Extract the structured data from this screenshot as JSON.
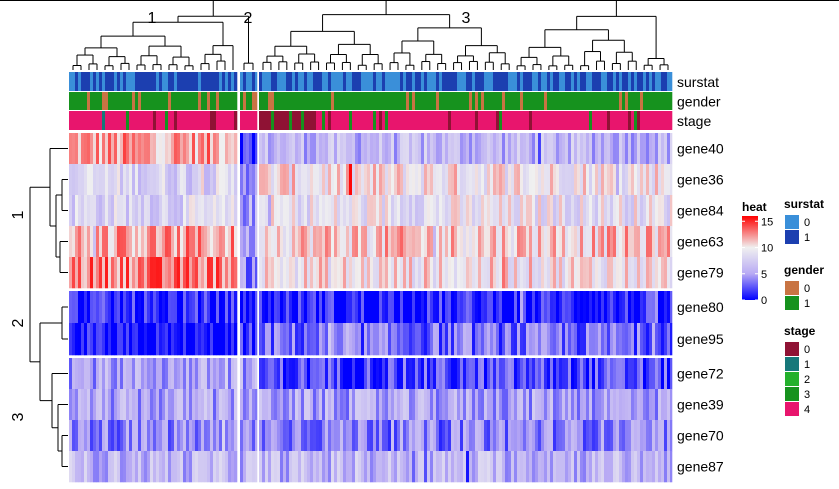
{
  "chart_data": {
    "type": "heatmap",
    "title": "",
    "xlabel": "",
    "ylabel": "",
    "column_split_labels": [
      "1",
      "2",
      "3"
    ],
    "row_split_labels": [
      "1",
      "2",
      "3"
    ],
    "row_groups": [
      [
        "gene40",
        "gene36",
        "gene84",
        "gene63",
        "gene79"
      ],
      [
        "gene80",
        "gene95"
      ],
      [
        "gene72",
        "gene39",
        "gene70",
        "gene87"
      ]
    ],
    "annotation_tracks": [
      "surstat",
      "gender",
      "stage"
    ],
    "heat_legend": {
      "title": "heat",
      "ticks": [
        15,
        10,
        5,
        0
      ],
      "range": [
        0,
        16
      ]
    },
    "legends": [
      {
        "title": "surstat",
        "items": [
          {
            "label": "0",
            "color": "#3a8fd9"
          },
          {
            "label": "1",
            "color": "#1c3fb0"
          }
        ]
      },
      {
        "title": "gender",
        "items": [
          {
            "label": "0",
            "color": "#c87443"
          },
          {
            "label": "1",
            "color": "#16921e"
          }
        ]
      },
      {
        "title": "stage",
        "items": [
          {
            "label": "0",
            "color": "#8f1234"
          },
          {
            "label": "1",
            "color": "#16787a"
          },
          {
            "label": "2",
            "color": "#23b02c"
          },
          {
            "label": "3",
            "color": "#16921e"
          },
          {
            "label": "4",
            "color": "#e8156d"
          }
        ]
      }
    ],
    "row_mean_values": {
      "gene40": [
        12,
        2,
        6
      ],
      "gene36": [
        8,
        5,
        10
      ],
      "gene84": [
        8,
        5,
        9
      ],
      "gene63": [
        12,
        5,
        11
      ],
      "gene79": [
        13,
        4,
        10
      ],
      "gene80": [
        1,
        1,
        1
      ],
      "gene95": [
        0,
        1,
        3
      ],
      "gene72": [
        5,
        5,
        2
      ],
      "gene39": [
        5,
        5,
        5
      ],
      "gene70": [
        4,
        4,
        4
      ],
      "gene87": [
        6,
        6,
        6
      ]
    }
  }
}
